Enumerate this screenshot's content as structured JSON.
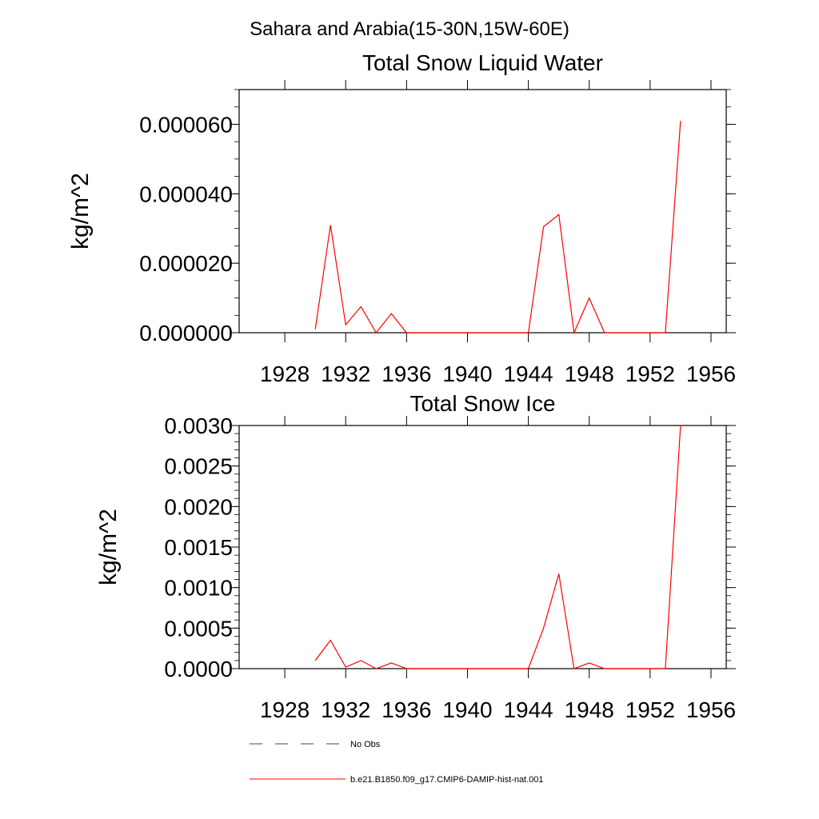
{
  "figure": {
    "region_title": "Sahara and Arabia(15-30N,15W-60E)"
  },
  "legend": {
    "entries": [
      {
        "label": "No Obs",
        "color": "#3c3c8c",
        "style": "dashed"
      },
      {
        "label": "b.e21.B1850.f09_g17.CMIP6-DAMIP-hist-nat.001",
        "color": "#ff0000",
        "style": "solid"
      }
    ]
  },
  "chart_data": [
    {
      "type": "line",
      "title": "Total Snow Liquid Water",
      "xlabel": "",
      "ylabel": "kg/m^2",
      "xlim": [
        1925,
        1957
      ],
      "ylim": [
        0,
        7e-05
      ],
      "xticks": [
        1928,
        1932,
        1936,
        1940,
        1944,
        1948,
        1952,
        1956
      ],
      "xtick_labels": [
        "1928",
        "1932",
        "1936",
        "1940",
        "1944",
        "1948",
        "1952",
        "1956"
      ],
      "yticks": [
        0,
        2e-05,
        4e-05,
        6e-05
      ],
      "ytick_labels": [
        "0.000000",
        "0.000020",
        "0.000040",
        "0.000060"
      ],
      "grid": false,
      "series": [
        {
          "name": "b.e21.B1850.f09_g17.CMIP6-DAMIP-hist-nat.001",
          "color": "#ff0000",
          "x": [
            1930,
            1931,
            1932,
            1933,
            1934,
            1935,
            1936,
            1937,
            1938,
            1939,
            1940,
            1941,
            1942,
            1943,
            1944,
            1945,
            1946,
            1947,
            1948,
            1949,
            1950,
            1951,
            1952,
            1953,
            1954
          ],
          "values": [
            1e-06,
            3.1e-05,
            2.3e-06,
            7.5e-06,
            0,
            5.5e-06,
            0,
            0,
            0,
            0,
            0,
            0,
            0,
            0,
            0,
            3.05e-05,
            3.4e-05,
            0,
            1e-05,
            0,
            0,
            0,
            0,
            0,
            6.1e-05
          ]
        }
      ]
    },
    {
      "type": "line",
      "title": "Total Snow Ice",
      "xlabel": "",
      "ylabel": "kg/m^2",
      "xlim": [
        1925,
        1957
      ],
      "ylim": [
        0,
        0.003
      ],
      "xticks": [
        1928,
        1932,
        1936,
        1940,
        1944,
        1948,
        1952,
        1956
      ],
      "xtick_labels": [
        "1928",
        "1932",
        "1936",
        "1940",
        "1944",
        "1948",
        "1952",
        "1956"
      ],
      "yticks": [
        0,
        0.0005,
        0.001,
        0.0015,
        0.002,
        0.0025,
        0.003
      ],
      "ytick_labels": [
        "0.0000",
        "0.0005",
        "0.0010",
        "0.0015",
        "0.0020",
        "0.0025",
        "0.0030"
      ],
      "grid": false,
      "series": [
        {
          "name": "b.e21.B1850.f09_g17.CMIP6-DAMIP-hist-nat.001",
          "color": "#ff0000",
          "x": [
            1930,
            1931,
            1932,
            1933,
            1934,
            1935,
            1936,
            1937,
            1938,
            1939,
            1940,
            1941,
            1942,
            1943,
            1944,
            1945,
            1946,
            1947,
            1948,
            1949,
            1950,
            1951,
            1952,
            1953,
            1954
          ],
          "values": [
            0.0001,
            0.00035,
            2e-05,
            0.0001,
            0,
            7e-05,
            0,
            0,
            0,
            0,
            0,
            0,
            0,
            0,
            0,
            0.0005,
            0.00117,
            0,
            7e-05,
            0,
            0,
            0,
            0,
            0,
            0.003
          ]
        }
      ]
    }
  ]
}
